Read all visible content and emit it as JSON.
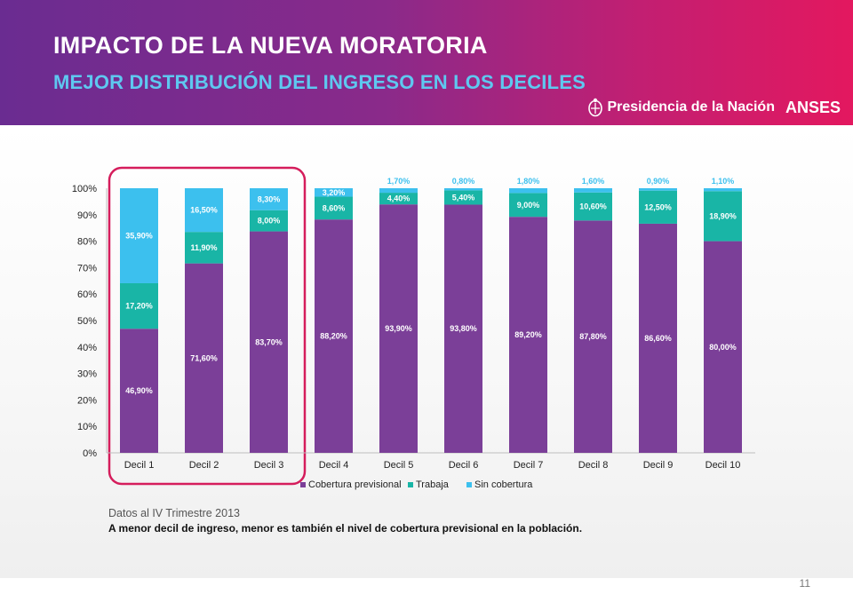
{
  "header": {
    "title": "IMPACTO DE LA NUEVA MORATORIA",
    "subtitle": "MEJOR DISTRIBUCIÓN DEL INGRESO EN LOS DECILES",
    "presidencia": "Presidencia de la Nación",
    "anses": "ANSES"
  },
  "footer": {
    "note": "Datos al IV Trimestre 2013",
    "conclusion": "A menor decil de ingreso, menor es también el nivel de cobertura previsional en la población.",
    "page_number": "11"
  },
  "colors": {
    "cobertura": "#7b3f98",
    "trabaja": "#19b5a6",
    "sin_cobertura": "#3cc0ee",
    "highlight": "#d51d5c"
  },
  "chart_data": {
    "type": "bar",
    "stacked": true,
    "categories": [
      "Decil 1",
      "Decil 2",
      "Decil 3",
      "Decil 4",
      "Decil 5",
      "Decil 6",
      "Decil 7",
      "Decil 8",
      "Decil 9",
      "Decil 10"
    ],
    "series": [
      {
        "name": "Cobertura previsional",
        "values": [
          46.9,
          71.6,
          83.7,
          88.2,
          93.9,
          93.8,
          89.2,
          87.8,
          86.6,
          80.0
        ],
        "labels": [
          "46,90%",
          "71,60%",
          "83,70%",
          "88,20%",
          "93,90%",
          "93,80%",
          "89,20%",
          "87,80%",
          "86,60%",
          "80,00%"
        ]
      },
      {
        "name": "Trabaja",
        "values": [
          17.2,
          11.9,
          8.0,
          8.6,
          4.4,
          5.4,
          9.0,
          10.6,
          12.5,
          18.9
        ],
        "labels": [
          "17,20%",
          "11,90%",
          "8,00%",
          "8,60%",
          "4,40%",
          "5,40%",
          "9,00%",
          "10,60%",
          "12,50%",
          "18,90%"
        ]
      },
      {
        "name": "Sin cobertura",
        "values": [
          35.9,
          16.5,
          8.3,
          3.2,
          1.7,
          0.8,
          1.8,
          1.6,
          0.9,
          1.1
        ],
        "labels": [
          "35,90%",
          "16,50%",
          "8,30%",
          "3,20%",
          "1,70%",
          "0,80%",
          "1,80%",
          "1,60%",
          "0,90%",
          "1,10%"
        ]
      }
    ],
    "ylim": [
      0,
      100
    ],
    "yticks": [
      "0%",
      "10%",
      "20%",
      "30%",
      "40%",
      "50%",
      "60%",
      "70%",
      "80%",
      "90%",
      "100%"
    ],
    "legend_position": "bottom",
    "highlighted_categories": [
      "Decil 1",
      "Decil 2",
      "Decil 3"
    ],
    "grid": false
  }
}
